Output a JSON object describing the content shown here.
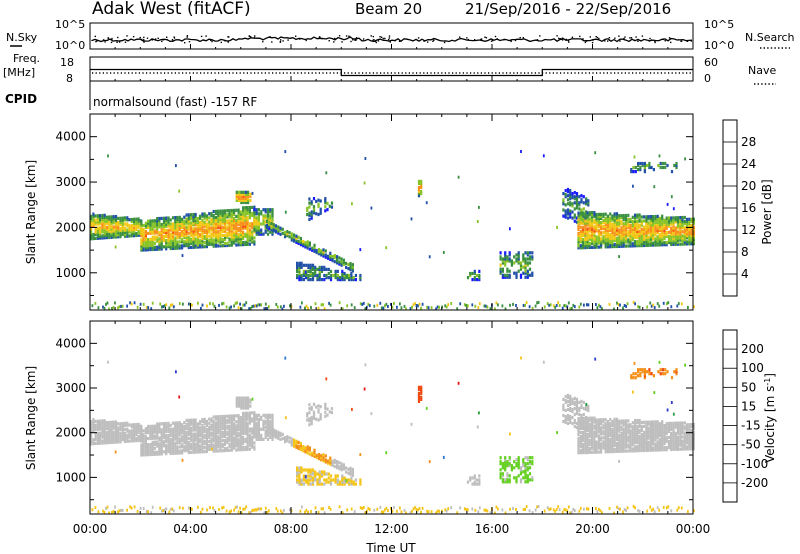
{
  "header": {
    "radar": "Adak West (fitACF)",
    "beam": "Beam 20",
    "daterange": "21/Sep/2016 - 22/Sep/2016"
  },
  "panels": {
    "nsky": {
      "left_label": "N.Sky",
      "right_label": "N.Search",
      "left_top_tick": "10^5",
      "left_bot_tick": "10^0",
      "right_top_tick": "10^5",
      "right_bot_tick": "10^0"
    },
    "freq": {
      "left_label_1": "Freq.",
      "left_label_2": "[MHz]",
      "right_label": "Nave",
      "left_top_tick": "18",
      "left_bot_tick": "8",
      "right_top_tick": "60",
      "right_bot_tick": "0"
    },
    "cpid": {
      "label": "CPID",
      "text": "normalsound (fast) -157 RF"
    }
  },
  "chart_data": [
    {
      "type": "line",
      "name": "nsky_nsearch",
      "title": "",
      "xlabel": "",
      "ylabel": "N.Sky",
      "y2label": "N.Search",
      "ylim": [
        1,
        100000
      ],
      "log_scale": true
    },
    {
      "type": "line",
      "name": "freq_nave",
      "ylabel": "Freq. [MHz]",
      "y2label": "Nave",
      "ylim": [
        8,
        18
      ],
      "y2lim": [
        0,
        60
      ],
      "series": [
        {
          "name": "Freq.",
          "x_hours": [
            0,
            10,
            10,
            18,
            18,
            24
          ],
          "values": [
            12.8,
            12.8,
            10.3,
            10.3,
            12.8,
            12.8
          ]
        }
      ]
    },
    {
      "type": "heatmap",
      "name": "power",
      "ylabel": "Slant Range [km]",
      "colorbar_label": "Power [dB]",
      "colorbar_ticks": [
        "4",
        "8",
        "12",
        "16",
        "20",
        "24",
        "28"
      ],
      "colorbar_colors": [
        "#1a1aff",
        "#2050a8",
        "#3a9040",
        "#88c428",
        "#f2c816",
        "#f7911c",
        "#f75010",
        "#ee1010"
      ],
      "yticks": [
        "1000",
        "2000",
        "3000",
        "4000"
      ],
      "ytick_values": [
        1000,
        2000,
        3000,
        4000
      ],
      "ylim": [
        180,
        4500
      ],
      "xticks": [
        "00:00",
        "04:00",
        "08:00",
        "12:00",
        "16:00",
        "20:00",
        "00:00"
      ],
      "xlim_hours": [
        0,
        24
      ]
    },
    {
      "type": "heatmap",
      "name": "velocity",
      "ylabel": "Slant Range [km]",
      "colorbar_label": "Velocity [m s-1]",
      "colorbar_label_main": "Velocity [m s",
      "colorbar_label_exp": "-1",
      "colorbar_label_end": "]",
      "colorbar_ticks": [
        "200",
        "100",
        "50",
        "15",
        "-15",
        "-50",
        "-100",
        "-200"
      ],
      "colorbar_colors": [
        "#2a3cc8",
        "#2a74d4",
        "#2aa040",
        "#64d020",
        "#bebebe",
        "#f4c418",
        "#f49018",
        "#f04a14",
        "#e81414"
      ],
      "yticks": [
        "1000",
        "2000",
        "3000",
        "4000"
      ],
      "ytick_values": [
        1000,
        2000,
        3000,
        4000
      ],
      "ylim": [
        180,
        4500
      ],
      "xticks": [
        "00:00",
        "04:00",
        "08:00",
        "12:00",
        "16:00",
        "20:00",
        "00:00"
      ],
      "xlim_hours": [
        0,
        24
      ],
      "xlabel": "Time UT"
    }
  ]
}
